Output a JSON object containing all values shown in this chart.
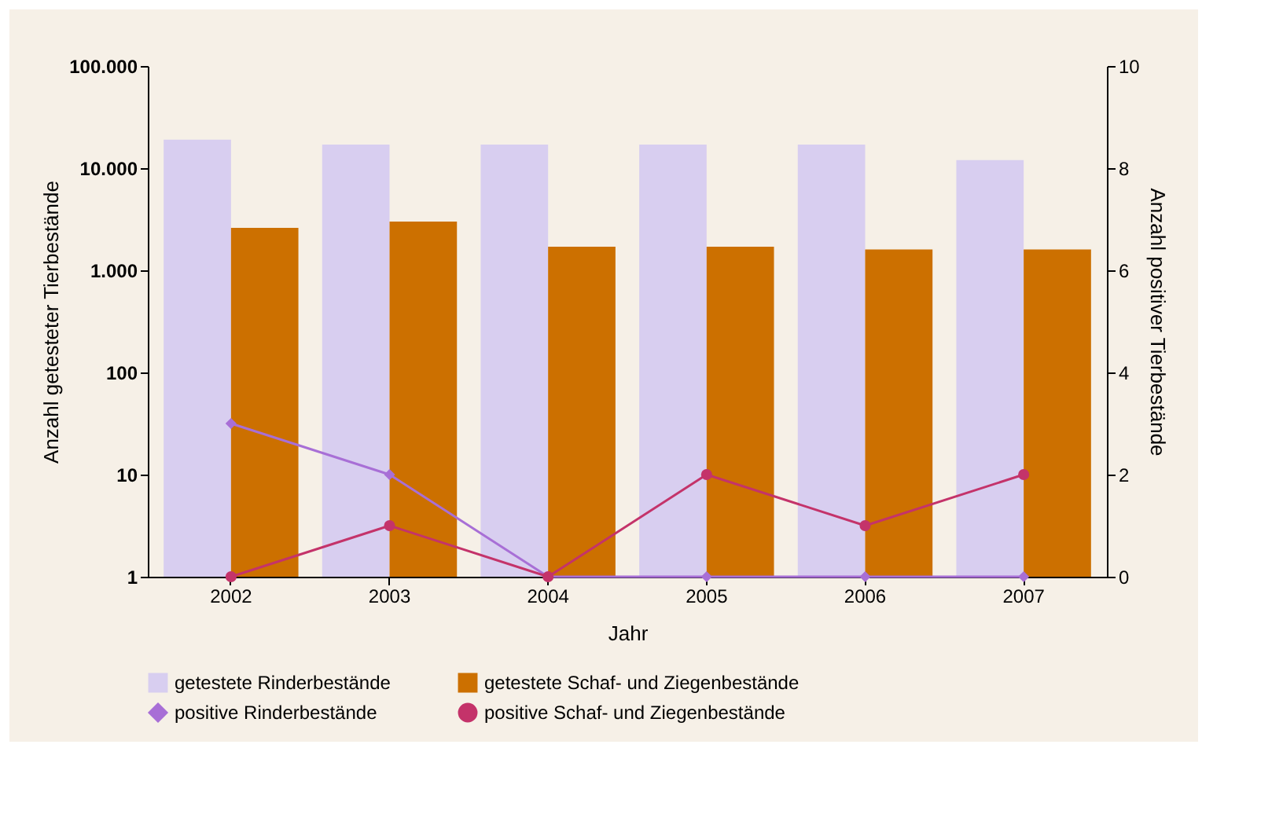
{
  "chart_data": {
    "type": "bar",
    "xlabel": "Jahr",
    "ylabel": "Anzahl getesteter Tierbestände",
    "y2label": "Anzahl positiver Tierbestände",
    "categories": [
      "2002",
      "2003",
      "2004",
      "2005",
      "2006",
      "2007"
    ],
    "series": [
      {
        "name": "getestete Rinderbestände",
        "color": "#d8cef0",
        "values": [
          19000,
          17000,
          17000,
          17000,
          17000,
          12000
        ]
      },
      {
        "name": "getestete Schaf- und Ziegenbestände",
        "color": "#cc7000",
        "values": [
          2600,
          3000,
          1700,
          1700,
          1600,
          1600
        ]
      },
      {
        "name": "positive Rinderbestände",
        "type": "line",
        "axis": "y2",
        "marker": "diamond",
        "color": "#a86fd6",
        "values": [
          3,
          2,
          0,
          0,
          0,
          0
        ]
      },
      {
        "name": "positive Schaf- und Ziegenbestände",
        "type": "line",
        "axis": "y2",
        "marker": "circle",
        "color": "#c4336a",
        "values": [
          0,
          1,
          0,
          2,
          1,
          2
        ]
      }
    ],
    "log": "y",
    "ylim": [
      1,
      100000
    ],
    "yticks": [
      {
        "value": 1,
        "label": "1"
      },
      {
        "value": 10,
        "label": "10"
      },
      {
        "value": 100,
        "label": "100"
      },
      {
        "value": 1000,
        "label": "1.000"
      },
      {
        "value": 10000,
        "label": "10.000"
      },
      {
        "value": 100000,
        "label": "100.000"
      }
    ],
    "y2lim": [
      0,
      10
    ],
    "y2ticks": [
      0,
      2,
      4,
      6,
      8,
      10
    ],
    "grid": false,
    "legend": "bottom",
    "line_style": "solid"
  }
}
